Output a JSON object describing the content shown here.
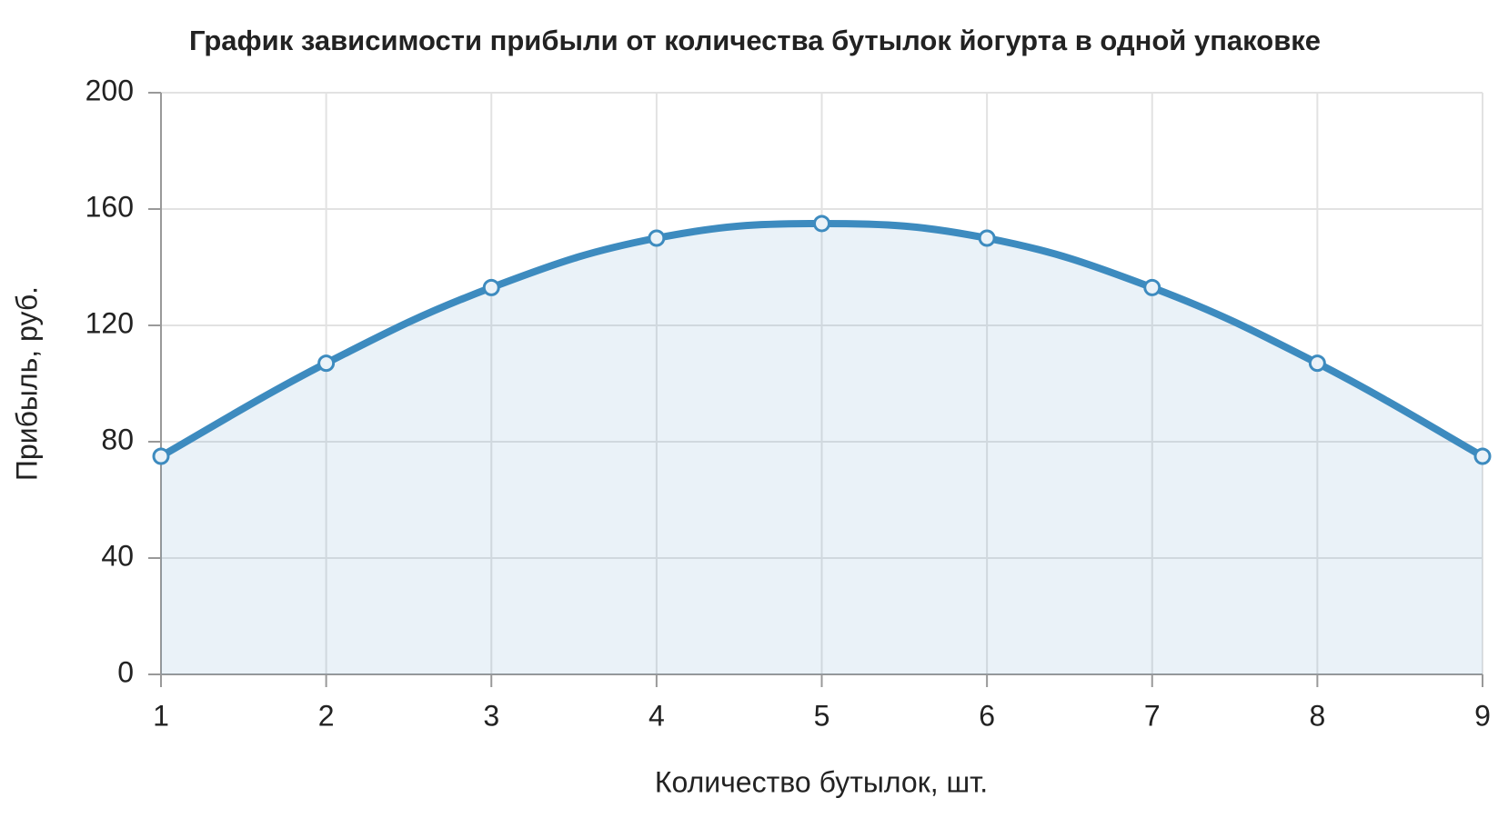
{
  "chart_data": {
    "type": "line",
    "title": "График зависимости прибыли от количества бутылок йогурта в одной упаковке",
    "xlabel": "Количество бутылок, шт.",
    "ylabel": "Прибыль, руб.",
    "x": [
      1,
      2,
      3,
      4,
      5,
      6,
      7,
      8,
      9
    ],
    "series": [
      {
        "color": "#3d8bbf",
        "values": [
          75,
          107,
          133,
          150,
          155,
          150,
          133,
          107,
          75
        ]
      }
    ],
    "xlim": [
      1,
      9
    ],
    "xticks": [
      1,
      2,
      3,
      4,
      5,
      6,
      7,
      8,
      9
    ],
    "ylim": [
      0,
      200
    ],
    "yticks": [
      0,
      40,
      80,
      120,
      160,
      200
    ],
    "grid": true,
    "fill": true
  }
}
